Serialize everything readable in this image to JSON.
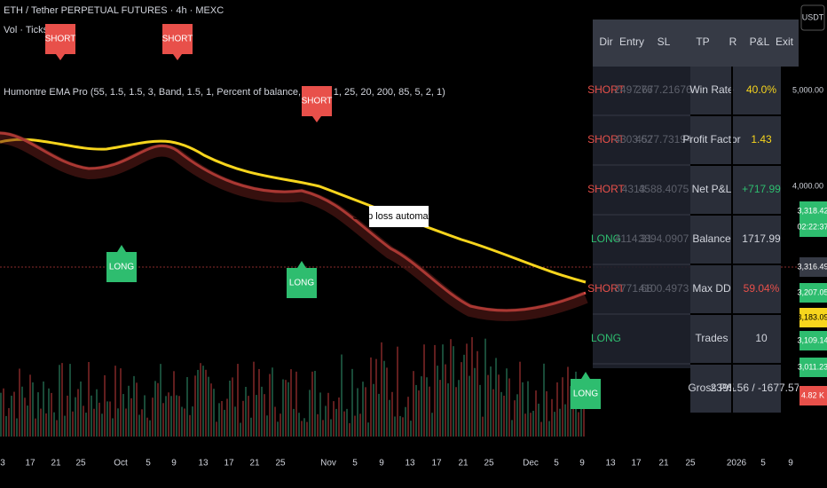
{
  "header": {
    "symbol": "ETH / Tether PERPETUAL FUTURES · 4h · MEXC",
    "volume": "Vol · Ticks",
    "indicator": "Humontre EMA Pro (55, 1.5, 1.5, 3, Band, 1.5, 1, Percent of balance, 1,000, 1, 25, 20, 200, 85, 5, 2, 1)"
  },
  "currency": "USDT",
  "price_axis": {
    "labels": [
      "5,000.00",
      "4,000.00"
    ],
    "tags": [
      "3,318.42",
      "02:22:37",
      "3,316.49",
      "3,207.05",
      "3,183.09",
      "3,109.14",
      "3,011.23",
      "4.82 K"
    ]
  },
  "time_axis": [
    "3",
    "17",
    "21",
    "25",
    "Oct",
    "5",
    "9",
    "13",
    "17",
    "21",
    "25",
    "Nov",
    "5",
    "9",
    "13",
    "17",
    "21",
    "25",
    "Dec",
    "5",
    "9",
    "13",
    "17",
    "21",
    "25",
    "2026",
    "5",
    "9"
  ],
  "signals": [
    "SHORT",
    "SHORT",
    "SHORT",
    "LONG",
    "LONG",
    "LONG"
  ],
  "annotation": "Stop loss automation",
  "trades_table": {
    "headers": [
      "Dir",
      "Entry",
      "SL",
      "TP",
      "R",
      "P&L",
      "Exit"
    ],
    "rows": [
      [
        "SHORT",
        "2497.76",
        "2677.21676"
      ],
      [
        "SHORT",
        "4303.62",
        "4577.73194"
      ],
      [
        "SHORT",
        "4313",
        "4588.4075"
      ],
      [
        "LONG",
        "4114.31",
        "3894.0907"
      ],
      [
        "SHORT",
        "3771.68",
        "4100.4973"
      ],
      [
        "LONG"
      ]
    ]
  },
  "stats": [
    [
      "Win Rate",
      "40.0%"
    ],
    [
      "Profit Factor",
      "1.43"
    ],
    [
      "Net P&L",
      "+717.99"
    ],
    [
      "Balance",
      "1717.99"
    ],
    [
      "Max DD",
      "59.04%"
    ],
    [
      "Trades",
      "10"
    ],
    [
      "Gross P/L",
      "2395.56 / -1677.57"
    ]
  ]
}
